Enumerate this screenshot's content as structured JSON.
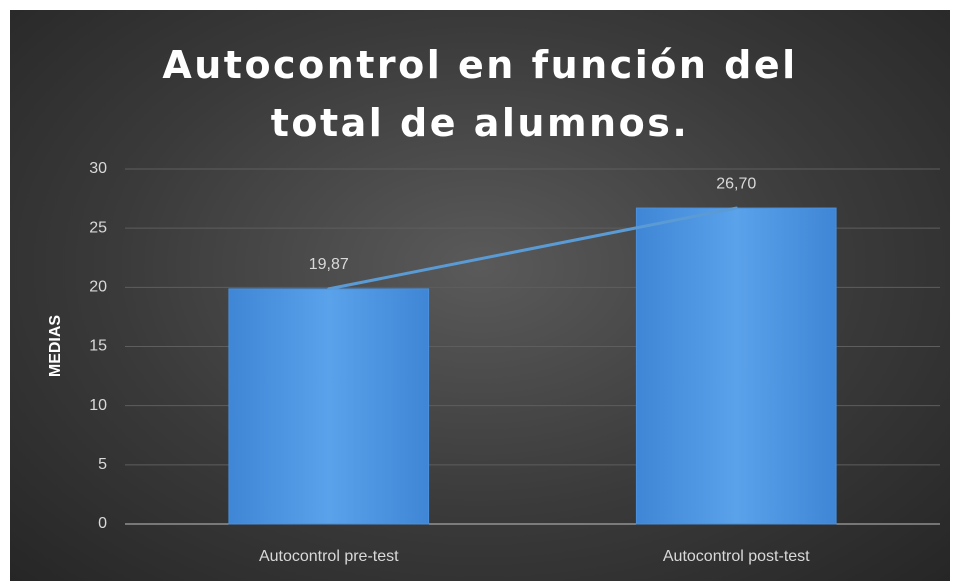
{
  "chart_data": {
    "type": "bar",
    "title": "Autocontrol en función del total de alumnos.",
    "y_label": "MEDIAS",
    "categories": [
      "Autocontrol pre-test",
      "Autocontrol post-test"
    ],
    "values": [
      19.87,
      26.7
    ],
    "value_labels": [
      "19,87",
      "26,70"
    ],
    "color": "#4a90dc",
    "line_color": "#5b9bd5",
    "overlay_line": true,
    "ylim": [
      0,
      30
    ],
    "yticks": [
      0,
      5,
      10,
      15,
      20,
      25,
      30
    ],
    "grid": true
  }
}
